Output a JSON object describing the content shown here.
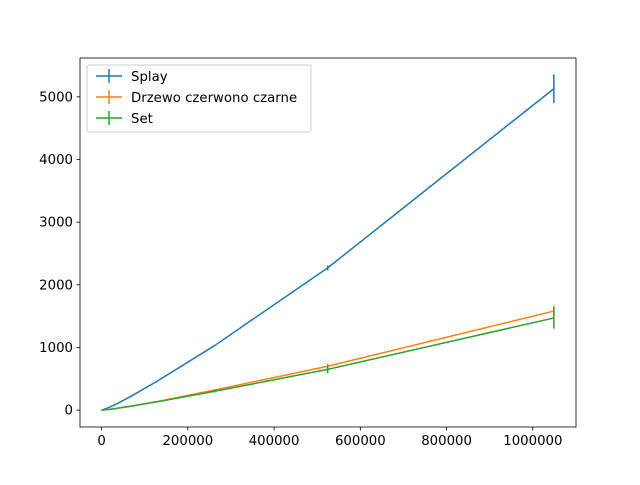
{
  "chart_data": {
    "type": "line",
    "title": "",
    "xlabel": "",
    "ylabel": "",
    "xlim": [
      -50000,
      1100000
    ],
    "ylim": [
      -270,
      5620
    ],
    "x_ticks": [
      0,
      200000,
      400000,
      600000,
      800000,
      1000000
    ],
    "x_tick_labels": [
      "0",
      "200000",
      "400000",
      "600000",
      "800000",
      "1000000"
    ],
    "y_ticks": [
      0,
      1000,
      2000,
      3000,
      4000,
      5000
    ],
    "y_tick_labels": [
      "0",
      "1000",
      "2000",
      "3000",
      "4000",
      "5000"
    ],
    "grid": false,
    "legend_position": "top-left",
    "series": [
      {
        "name": "Splay",
        "color": "#1f77b4",
        "x": [
          1024,
          16384,
          32768,
          65536,
          131072,
          262144,
          524288,
          1048576
        ],
        "y": [
          0,
          40,
          90,
          210,
          470,
          1030,
          2270,
          5130
        ],
        "err": [
          0,
          0,
          0,
          0,
          0,
          0,
          40,
          230
        ]
      },
      {
        "name": "Drzewo czerwono czarne",
        "color": "#ff7f0e",
        "x": [
          1024,
          16384,
          32768,
          65536,
          131072,
          262144,
          524288,
          1048576
        ],
        "y": [
          0,
          10,
          25,
          60,
          140,
          320,
          700,
          1580
        ],
        "err": [
          0,
          0,
          0,
          0,
          0,
          0,
          40,
          90
        ]
      },
      {
        "name": "Set",
        "color": "#2ca02c",
        "x": [
          1024,
          16384,
          32768,
          65536,
          131072,
          262144,
          524288,
          1048576
        ],
        "y": [
          0,
          10,
          25,
          60,
          135,
          300,
          650,
          1470
        ],
        "err": [
          0,
          0,
          0,
          0,
          0,
          20,
          60,
          170
        ]
      }
    ]
  }
}
